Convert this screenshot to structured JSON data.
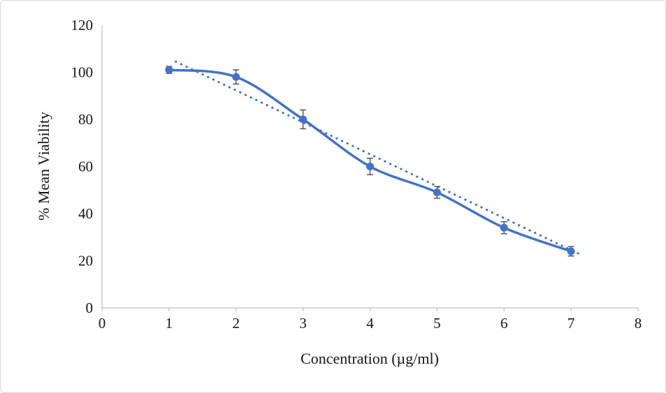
{
  "chart_data": {
    "type": "line",
    "title": "",
    "xlabel": "Concentration (µg/ml)",
    "ylabel": "% Mean Viability",
    "x": [
      1,
      2,
      3,
      4,
      5,
      6,
      7
    ],
    "series": [
      {
        "name": "% Mean Viability",
        "values": [
          101,
          98,
          80,
          60,
          49,
          34,
          24
        ],
        "error": [
          1.5,
          3,
          4,
          3.5,
          2.5,
          2.5,
          2
        ]
      }
    ],
    "trendline": {
      "style": "dotted",
      "x": [
        1.1,
        7.15
      ],
      "values": [
        104.5,
        22.5
      ]
    },
    "xlim": [
      0,
      8
    ],
    "ylim": [
      0,
      120
    ],
    "x_ticks": [
      0,
      1,
      2,
      3,
      4,
      5,
      6,
      7,
      8
    ],
    "y_ticks": [
      0,
      20,
      40,
      60,
      80,
      100,
      120
    ],
    "grid": false,
    "legend": false,
    "color": "#4472C4",
    "error_color": "#4f4f4f",
    "axis_color": "#bfbfbf"
  }
}
